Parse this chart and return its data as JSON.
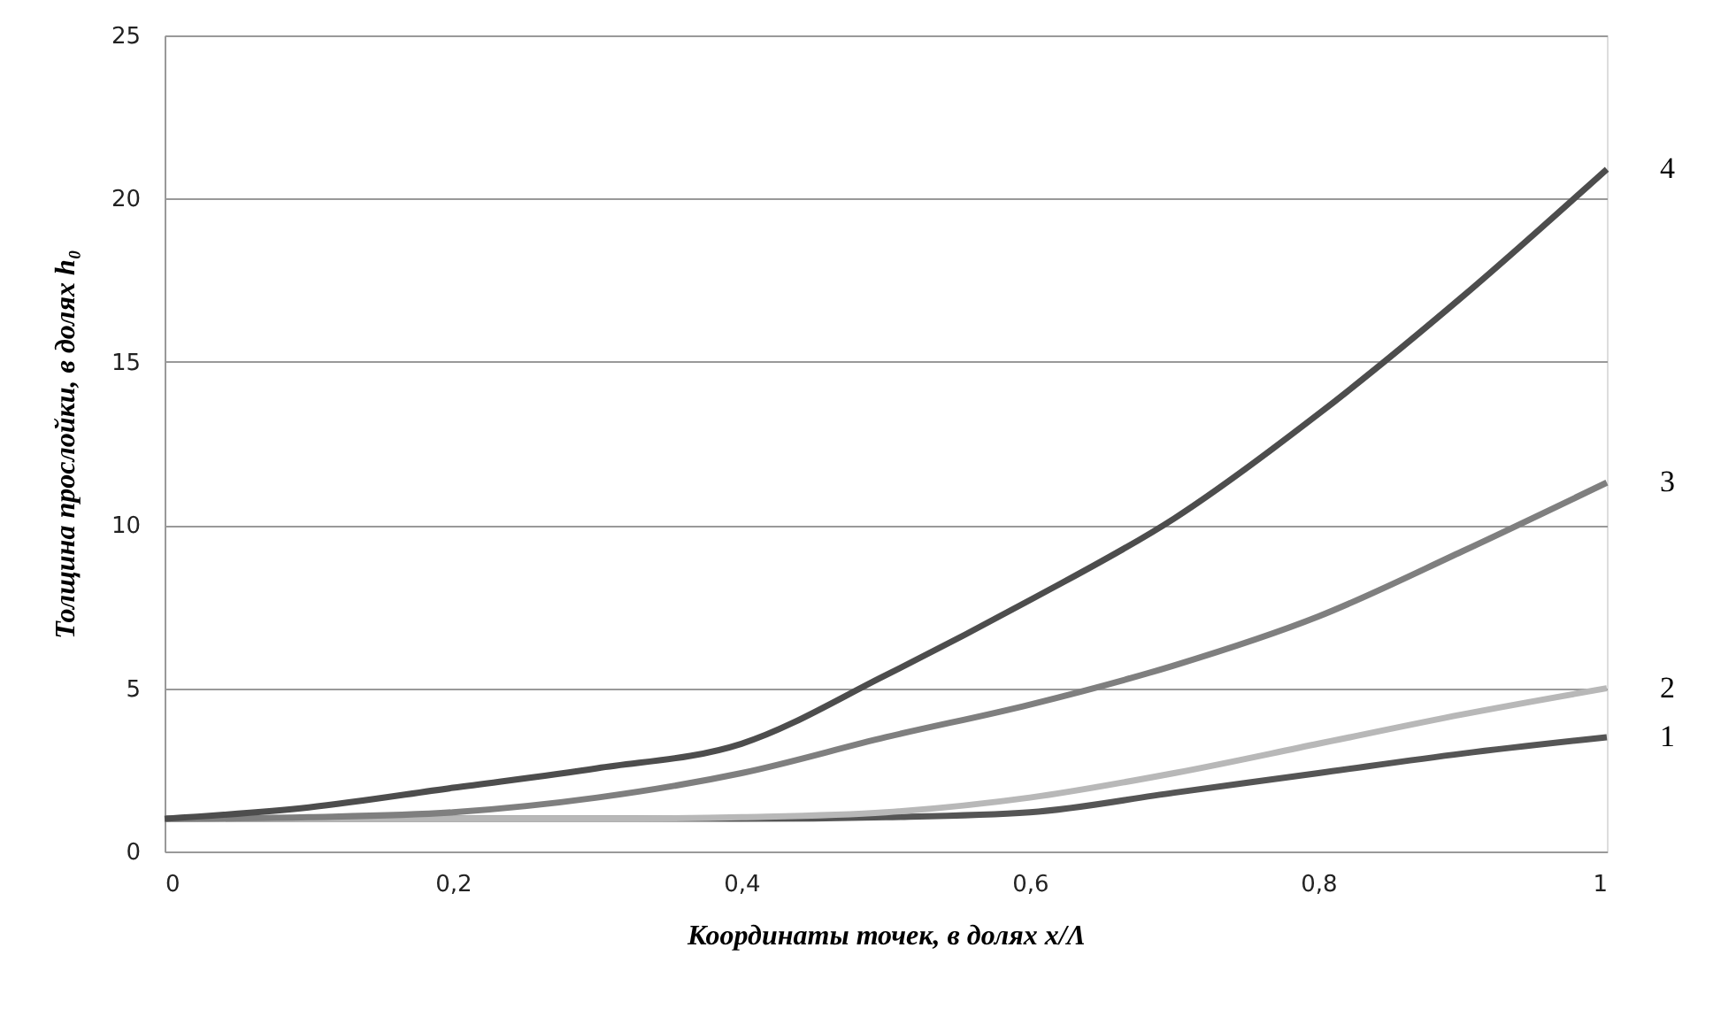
{
  "chart_data": {
    "type": "line",
    "xlabel": "Координаты точек, в долях x/Λ",
    "ylabel": "Толщина прослойки, в долях h₀",
    "x": [
      0,
      0.1,
      0.2,
      0.3,
      0.4,
      0.5,
      0.6,
      0.7,
      0.8,
      0.9,
      1
    ],
    "series": [
      {
        "name": "1",
        "color": "#555555",
        "values": [
          1,
          1,
          1,
          1,
          1,
          1.05,
          1.2,
          1.8,
          2.4,
          3,
          3.5
        ]
      },
      {
        "name": "2",
        "color": "#b8b8b8",
        "values": [
          1,
          1,
          1,
          1,
          1.05,
          1.2,
          1.65,
          2.4,
          3.3,
          4.2,
          5
        ]
      },
      {
        "name": "3",
        "color": "#7f7f7f",
        "values": [
          1,
          1.05,
          1.2,
          1.65,
          2.4,
          3.5,
          4.5,
          5.7,
          7.2,
          9.2,
          11.3
        ]
      },
      {
        "name": "4",
        "color": "#4d4d4d",
        "values": [
          1,
          1.35,
          1.95,
          2.55,
          3.3,
          5.4,
          7.7,
          10.2,
          13.4,
          17,
          20.9
        ]
      }
    ],
    "xlim": [
      0,
      1
    ],
    "xticks": [
      {
        "value": 0,
        "label": "0"
      },
      {
        "value": 0.2,
        "label": "0,2"
      },
      {
        "value": 0.4,
        "label": "0,4"
      },
      {
        "value": 0.6,
        "label": "0,6"
      },
      {
        "value": 0.8,
        "label": "0,8"
      },
      {
        "value": 1,
        "label": "1"
      }
    ],
    "ylim": [
      0,
      25
    ],
    "yticks": [
      0,
      5,
      10,
      15,
      20,
      25
    ],
    "grid": "y",
    "legend": false,
    "marker": "none",
    "line_style": "solid"
  }
}
